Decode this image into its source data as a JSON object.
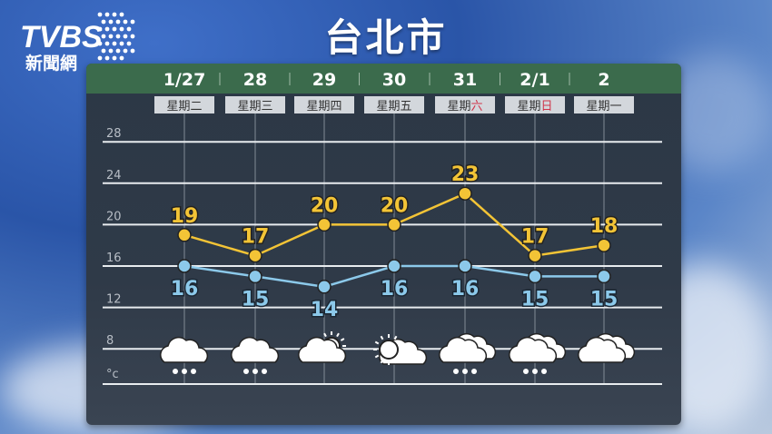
{
  "logo": {
    "text": "TVBS",
    "subtext": "新聞網"
  },
  "title": "台北市",
  "chart_data": {
    "type": "line",
    "title": "台北市",
    "categories": [
      "1/27",
      "28",
      "29",
      "30",
      "31",
      "2/1",
      "2"
    ],
    "weekdays": [
      {
        "prefix": "星期",
        "day": "二",
        "holiday": false
      },
      {
        "prefix": "星期",
        "day": "三",
        "holiday": false
      },
      {
        "prefix": "星期",
        "day": "四",
        "holiday": false
      },
      {
        "prefix": "星期",
        "day": "五",
        "holiday": false
      },
      {
        "prefix": "星期",
        "day": "六",
        "holiday": true
      },
      {
        "prefix": "星期",
        "day": "日",
        "holiday": true
      },
      {
        "prefix": "星期",
        "day": "一",
        "holiday": false
      }
    ],
    "series": [
      {
        "key": "high",
        "values": [
          19,
          17,
          20,
          20,
          23,
          17,
          18
        ],
        "color": "#f3c436"
      },
      {
        "key": "low",
        "values": [
          16,
          15,
          14,
          16,
          16,
          15,
          15
        ],
        "color": "#8cc9ea"
      }
    ],
    "yticks": [
      28,
      24,
      20,
      16,
      12,
      8
    ],
    "unit": "°c",
    "ylim": [
      4.5,
      30
    ],
    "grid": true,
    "weather_icons": [
      "rain-icon",
      "rain-icon",
      "partly-sunny-icon",
      "sunny-cloud-icon",
      "cloudy-rain-icon",
      "cloudy-rain-icon",
      "cloudy-icon"
    ],
    "holiday_color": "#d0344a"
  }
}
